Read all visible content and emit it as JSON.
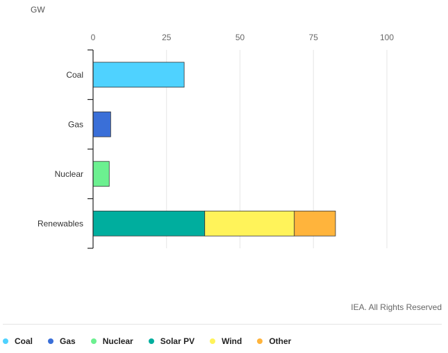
{
  "chart_data": {
    "type": "bar",
    "orientation": "horizontal",
    "stacked": true,
    "unit": "GW",
    "categories": [
      "Coal",
      "Gas",
      "Nuclear",
      "Renewables"
    ],
    "xlim": [
      0,
      100
    ],
    "xticks": [
      "0",
      "25",
      "50",
      "75",
      "100"
    ],
    "grid": true,
    "legend_placement": "bottom",
    "series": [
      {
        "name": "Coal",
        "color": "#4fd2ff",
        "values": [
          31,
          0,
          0,
          0
        ]
      },
      {
        "name": "Gas",
        "color": "#3a6fd8",
        "values": [
          0,
          6,
          0,
          0
        ]
      },
      {
        "name": "Nuclear",
        "color": "#6cf090",
        "values": [
          0,
          0,
          5.5,
          0
        ]
      },
      {
        "name": "Solar PV",
        "color": "#00ae9e",
        "values": [
          0,
          0,
          0,
          38
        ]
      },
      {
        "name": "Wind",
        "color": "#fff35a",
        "values": [
          0,
          0,
          0,
          30.5
        ]
      },
      {
        "name": "Other",
        "color": "#ffb43c",
        "values": [
          0,
          0,
          0,
          14
        ]
      }
    ],
    "credit": "IEA. All Rights Reserved"
  }
}
